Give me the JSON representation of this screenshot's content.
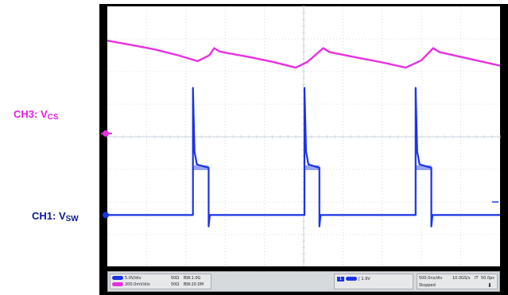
{
  "channel_labels": {
    "ch3": {
      "prefix": "CH3: V",
      "sub": "CS",
      "color": "#e61ce6"
    },
    "ch1": {
      "prefix": "CH1: V",
      "sub": "SW",
      "color": "#0a1a9c"
    }
  },
  "colors": {
    "ch3_trace": "#e830e0",
    "ch1_trace": "#1a33e6",
    "grid": "#c9d3dc",
    "screen_bg": "#ffffff",
    "bezel": "#000000"
  },
  "status_bar": {
    "ch1": {
      "scale": "5.0V/div",
      "impedance": "50Ω",
      "bandwidth": "BW:1.0G"
    },
    "ch3": {
      "scale": "200.0mV/div",
      "impedance": "50Ω",
      "bandwidth": "BW:20.0M"
    },
    "trigger": {
      "source": "1",
      "level": "1.9V"
    },
    "timebase": {
      "time_per_div": "500.0ns/div",
      "sample_rate": "10.0GS/s",
      "mode": "IT",
      "resolution": "50.0ps",
      "state": "Stopped"
    }
  },
  "chart_data": {
    "type": "line",
    "title": "",
    "xlabel": "",
    "ylabel": "",
    "x_divisions": 10,
    "y_divisions": 8,
    "grid": true,
    "period_div": 2.8,
    "series": [
      {
        "name": "CH3: VCS",
        "unit_per_div": "200.0mV/div",
        "note": "sawtooth ramp: slow decline then short rise after switch turn-off",
        "points_div": [
          [
            0,
            6.95
          ],
          [
            0.6,
            6.82
          ],
          [
            1.2,
            6.68
          ],
          [
            1.8,
            6.5
          ],
          [
            2.3,
            6.32
          ],
          [
            2.6,
            6.5
          ],
          [
            2.72,
            6.72
          ],
          [
            2.85,
            6.62
          ],
          [
            3.0,
            6.58
          ],
          [
            3.6,
            6.45
          ],
          [
            4.2,
            6.3
          ],
          [
            4.8,
            6.12
          ],
          [
            5.1,
            6.3
          ],
          [
            5.5,
            6.72
          ],
          [
            5.65,
            6.6
          ],
          [
            6.4,
            6.42
          ],
          [
            7.0,
            6.28
          ],
          [
            7.6,
            6.12
          ],
          [
            8.0,
            6.35
          ],
          [
            8.3,
            6.72
          ],
          [
            8.45,
            6.6
          ],
          [
            9.0,
            6.45
          ],
          [
            10.0,
            6.18
          ]
        ]
      },
      {
        "name": "CH1: VSW",
        "unit_per_div": "5.0V/div",
        "note": "switch node: low baseline with spikes and plateaus",
        "baseline_div": 1.6,
        "pulses": [
          {
            "start_div": 2.18,
            "end_div": 2.58,
            "spike_div": 5.5,
            "plateau_div": 3.05
          },
          {
            "start_div": 5.02,
            "end_div": 5.4,
            "spike_div": 5.5,
            "plateau_div": 3.05
          },
          {
            "start_div": 7.85,
            "end_div": 8.25,
            "spike_div": 5.5,
            "plateau_div": 3.05
          }
        ]
      }
    ]
  }
}
